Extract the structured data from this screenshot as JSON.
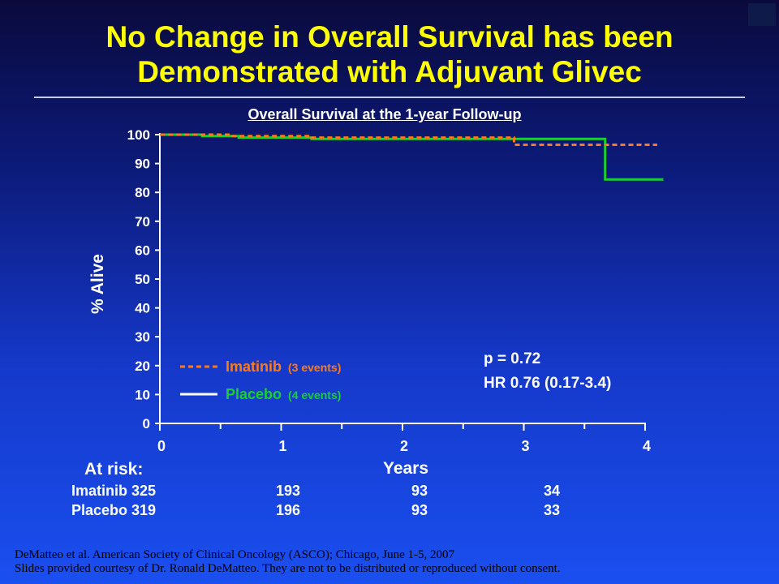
{
  "slide": {
    "title_line1": "No Change in Overall Survival has been",
    "title_line2": "Demonstrated with Adjuvant Glivec",
    "subtitle": "Overall Survival at the 1-year Follow-up"
  },
  "chart_data": {
    "type": "line",
    "title": "Overall Survival at the 1-year Follow-up",
    "xlabel": "Years",
    "ylabel": "% Alive",
    "xlim": [
      0,
      4
    ],
    "ylim": [
      0,
      100
    ],
    "x_ticks": [
      "0",
      "1",
      "2",
      "3",
      "4"
    ],
    "y_ticks": [
      "0",
      "10",
      "20",
      "30",
      "40",
      "50",
      "60",
      "70",
      "80",
      "90",
      "100"
    ],
    "series": [
      {
        "name": "Imatinib",
        "events_label": "(3 events)",
        "color": "#ff7a18",
        "style": "dashed",
        "points": [
          [
            0,
            100
          ],
          [
            0.6,
            100
          ],
          [
            0.6,
            99.5
          ],
          [
            1.25,
            99.5
          ],
          [
            1.25,
            99
          ],
          [
            2.92,
            99
          ],
          [
            2.92,
            96.5
          ],
          [
            4.1,
            96.5
          ]
        ]
      },
      {
        "name": "Placebo",
        "events_label": "(4 events)",
        "color": "#18d030",
        "style": "solid",
        "points": [
          [
            0,
            100
          ],
          [
            0.35,
            100
          ],
          [
            0.35,
            99.5
          ],
          [
            0.65,
            99.5
          ],
          [
            0.65,
            99
          ],
          [
            1.25,
            99
          ],
          [
            1.25,
            98.5
          ],
          [
            3.67,
            98.5
          ],
          [
            3.67,
            84.5
          ],
          [
            4.15,
            84.5
          ]
        ]
      }
    ],
    "legend_placement": "bottom-left",
    "annotations": [
      "p = 0.72",
      "HR 0.76 (0.17-3.4)"
    ],
    "grid": false
  },
  "at_risk": {
    "header": "At risk:",
    "rows": [
      {
        "label": "Imatinib 325",
        "values": [
          "193",
          "93",
          "34"
        ]
      },
      {
        "label": "Placebo 319",
        "values": [
          "196",
          "93",
          "33"
        ]
      }
    ]
  },
  "footer": {
    "line1": "DeMatteo et al. American Society of Clinical Oncology (ASCO); Chicago, June 1-5, 2007",
    "line2": "Slides provided courtesy of Dr. Ronald DeMatteo.  They are not to be distributed or reproduced without consent."
  }
}
